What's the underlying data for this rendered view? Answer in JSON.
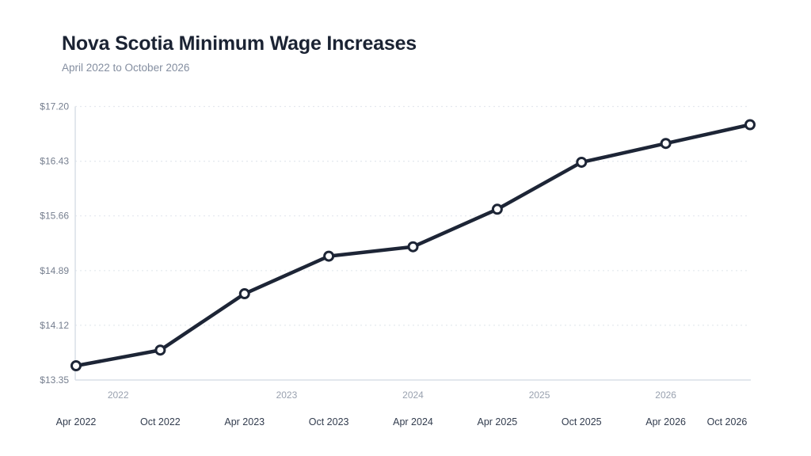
{
  "header": {
    "title": "Nova Scotia Minimum Wage Increases",
    "subtitle": "April 2022 to October 2026"
  },
  "chart_data": {
    "type": "line",
    "title": "Nova Scotia Minimum Wage Increases",
    "subtitle": "April 2022 to October 2026",
    "categories": [
      "Apr 2022",
      "Oct 2022",
      "Apr 2023",
      "Oct 2023",
      "Apr 2024",
      "Apr 2025",
      "Oct 2025",
      "Apr 2026",
      "Oct 2026"
    ],
    "values": [
      13.35,
      13.6,
      14.5,
      15.1,
      15.25,
      15.85,
      16.6,
      16.9,
      17.2
    ],
    "value_prefix": "$",
    "ylim": [
      13.35,
      17.2
    ],
    "y_tick_labels": [
      "$13.35",
      "$14.12",
      "$14.89",
      "$15.66",
      "$16.43",
      "$17.20"
    ],
    "year_labels": [
      {
        "text": "2022",
        "index": 0.5
      },
      {
        "text": "2023",
        "index": 2.5
      },
      {
        "text": "2024",
        "index": 4
      },
      {
        "text": "2025",
        "index": 5.5
      },
      {
        "text": "2026",
        "index": 7
      }
    ],
    "grid": "dashed-horizontal",
    "legend": "none",
    "colors": {
      "line": "#1d2536",
      "marker_fill": "#ffffff",
      "axis": "#d9dfe7",
      "grid": "#e4e8ee",
      "title": "#1b2333",
      "subtitle": "#848ea0",
      "y_label": "#767f8f",
      "year_label": "#99a1af",
      "month_label": "#323c4e"
    }
  }
}
